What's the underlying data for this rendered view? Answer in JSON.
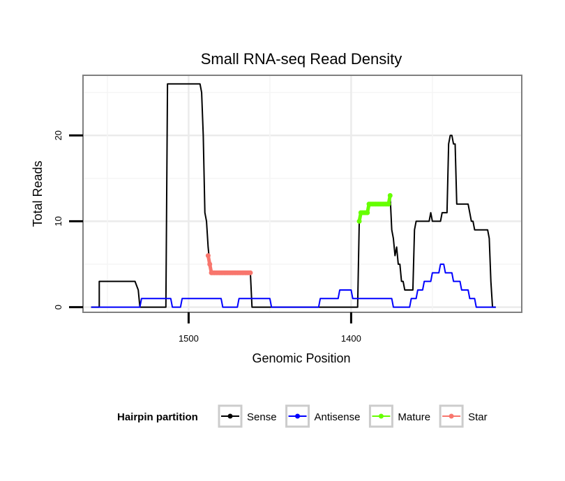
{
  "chart_data": {
    "type": "line",
    "title": "Small RNA-seq Read Density",
    "xlabel": "Genomic Position",
    "ylabel": "Total Reads",
    "x_reversed": true,
    "xlim": [
      1565,
      1295
    ],
    "ylim": [
      -0.6,
      27
    ],
    "x_ticks": [
      {
        "value": 1500,
        "label": "1500"
      },
      {
        "value": 1400,
        "label": "1400"
      }
    ],
    "y_ticks": [
      {
        "value": 0,
        "label": "0"
      },
      {
        "value": 10,
        "label": "10"
      },
      {
        "value": 20,
        "label": "20"
      }
    ],
    "legend": {
      "title": "Hairpin partition",
      "position": "bottom",
      "items": [
        {
          "label": "Sense",
          "color": "#000000"
        },
        {
          "label": "Antisense",
          "color": "#0000ff"
        },
        {
          "label": "Mature",
          "color": "#66ff00"
        },
        {
          "label": "Star",
          "color": "#f8766d"
        }
      ]
    },
    "series": [
      {
        "name": "Sense",
        "color": "#000000",
        "style": "line",
        "points": [
          [
            1560,
            0
          ],
          [
            1555,
            0
          ],
          [
            1555,
            3
          ],
          [
            1553,
            3
          ],
          [
            1533,
            3
          ],
          [
            1531,
            2
          ],
          [
            1530,
            0
          ],
          [
            1528,
            0
          ],
          [
            1521,
            0
          ],
          [
            1514,
            0
          ],
          [
            1513,
            26
          ],
          [
            1510,
            26
          ],
          [
            1493,
            26
          ],
          [
            1492,
            25
          ],
          [
            1491,
            20
          ],
          [
            1490,
            11
          ],
          [
            1489,
            10
          ],
          [
            1488,
            7
          ],
          [
            1487,
            5
          ],
          [
            1486,
            4
          ],
          [
            1480,
            4
          ],
          [
            1470,
            4
          ],
          [
            1462,
            4
          ],
          [
            1461,
            0
          ],
          [
            1450,
            0
          ],
          [
            1430,
            0
          ],
          [
            1410,
            0
          ],
          [
            1400,
            0
          ],
          [
            1396,
            0
          ],
          [
            1395,
            10
          ],
          [
            1394,
            11
          ],
          [
            1390,
            11
          ],
          [
            1389,
            12
          ],
          [
            1385,
            12
          ],
          [
            1380,
            12
          ],
          [
            1377,
            12
          ],
          [
            1376,
            13
          ],
          [
            1375,
            9
          ],
          [
            1374,
            8
          ],
          [
            1373,
            6
          ],
          [
            1372,
            7
          ],
          [
            1371,
            5
          ],
          [
            1370,
            5
          ],
          [
            1369,
            3
          ],
          [
            1368,
            3
          ],
          [
            1367,
            2
          ],
          [
            1364,
            2
          ],
          [
            1362,
            2
          ],
          [
            1361,
            9
          ],
          [
            1360,
            10
          ],
          [
            1354,
            10
          ],
          [
            1352,
            10
          ],
          [
            1351,
            11
          ],
          [
            1350,
            10
          ],
          [
            1345,
            10
          ],
          [
            1344,
            11
          ],
          [
            1341,
            11
          ],
          [
            1340,
            19
          ],
          [
            1339,
            20
          ],
          [
            1338,
            20
          ],
          [
            1337,
            19
          ],
          [
            1336,
            19
          ],
          [
            1335,
            12
          ],
          [
            1333,
            12
          ],
          [
            1328,
            12
          ],
          [
            1327,
            11
          ],
          [
            1326,
            10
          ],
          [
            1325,
            10
          ],
          [
            1324,
            9
          ],
          [
            1320,
            9
          ],
          [
            1316,
            9
          ],
          [
            1315,
            8
          ],
          [
            1314,
            3
          ],
          [
            1313,
            0
          ],
          [
            1311,
            0
          ]
        ]
      },
      {
        "name": "Antisense",
        "color": "#0000ff",
        "style": "line",
        "points": [
          [
            1560,
            0
          ],
          [
            1530,
            0
          ],
          [
            1529,
            1
          ],
          [
            1511,
            1
          ],
          [
            1510,
            0
          ],
          [
            1505,
            0
          ],
          [
            1504,
            1
          ],
          [
            1480,
            1
          ],
          [
            1479,
            0
          ],
          [
            1470,
            0
          ],
          [
            1469,
            1
          ],
          [
            1450,
            1
          ],
          [
            1449,
            0
          ],
          [
            1420,
            0
          ],
          [
            1419,
            1
          ],
          [
            1408,
            1
          ],
          [
            1407,
            2
          ],
          [
            1400,
            2
          ],
          [
            1399,
            1
          ],
          [
            1390,
            1
          ],
          [
            1389,
            1
          ],
          [
            1375,
            1
          ],
          [
            1374,
            0
          ],
          [
            1364,
            0
          ],
          [
            1363,
            1
          ],
          [
            1360,
            1
          ],
          [
            1359,
            2
          ],
          [
            1356,
            2
          ],
          [
            1355,
            3
          ],
          [
            1351,
            3
          ],
          [
            1350,
            4
          ],
          [
            1346,
            4
          ],
          [
            1345,
            5
          ],
          [
            1343,
            5
          ],
          [
            1342,
            4
          ],
          [
            1338,
            4
          ],
          [
            1337,
            3
          ],
          [
            1333,
            3
          ],
          [
            1332,
            2
          ],
          [
            1328,
            2
          ],
          [
            1327,
            1
          ],
          [
            1324,
            1
          ],
          [
            1323,
            0
          ],
          [
            1313,
            0
          ],
          [
            1311,
            0
          ]
        ]
      },
      {
        "name": "Mature",
        "color": "#66ff00",
        "style": "points-line",
        "points": [
          [
            1395,
            10
          ],
          [
            1394,
            11
          ],
          [
            1393,
            11
          ],
          [
            1392,
            11
          ],
          [
            1391,
            11
          ],
          [
            1390,
            11
          ],
          [
            1389,
            12
          ],
          [
            1388,
            12
          ],
          [
            1387,
            12
          ],
          [
            1386,
            12
          ],
          [
            1385,
            12
          ],
          [
            1384,
            12
          ],
          [
            1383,
            12
          ],
          [
            1382,
            12
          ],
          [
            1381,
            12
          ],
          [
            1380,
            12
          ],
          [
            1379,
            12
          ],
          [
            1378,
            12
          ],
          [
            1377,
            12
          ],
          [
            1376,
            13
          ]
        ]
      },
      {
        "name": "Star",
        "color": "#f8766d",
        "style": "points-line",
        "points": [
          [
            1488,
            6
          ],
          [
            1487,
            5
          ],
          [
            1486,
            4
          ],
          [
            1485,
            4
          ],
          [
            1484,
            4
          ],
          [
            1483,
            4
          ],
          [
            1482,
            4
          ],
          [
            1481,
            4
          ],
          [
            1480,
            4
          ],
          [
            1479,
            4
          ],
          [
            1478,
            4
          ],
          [
            1477,
            4
          ],
          [
            1476,
            4
          ],
          [
            1475,
            4
          ],
          [
            1474,
            4
          ],
          [
            1473,
            4
          ],
          [
            1472,
            4
          ],
          [
            1471,
            4
          ],
          [
            1470,
            4
          ],
          [
            1469,
            4
          ],
          [
            1468,
            4
          ],
          [
            1467,
            4
          ],
          [
            1466,
            4
          ],
          [
            1465,
            4
          ],
          [
            1464,
            4
          ],
          [
            1463,
            4
          ],
          [
            1462,
            4
          ]
        ]
      }
    ]
  }
}
